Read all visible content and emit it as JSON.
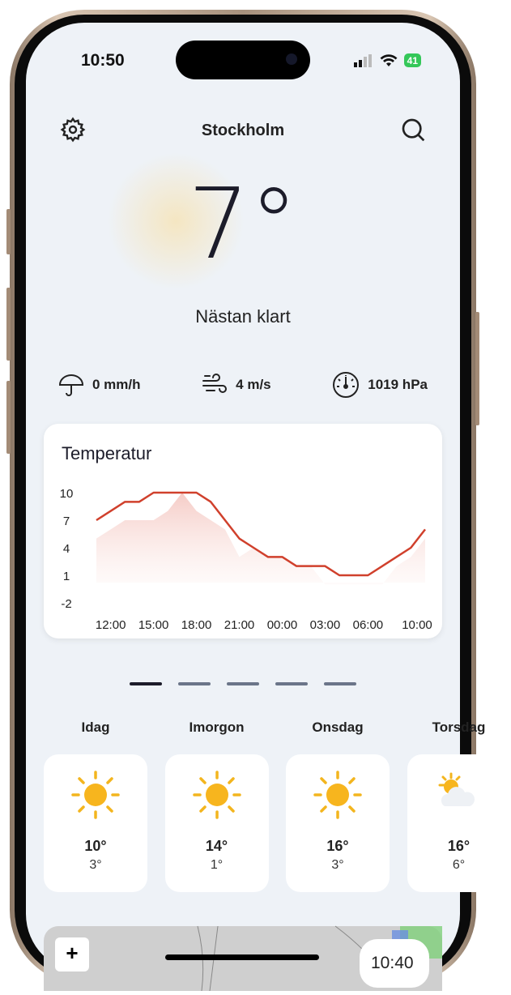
{
  "status_bar": {
    "time": "10:50",
    "battery": "41"
  },
  "header": {
    "title": "Stockholm",
    "settings_icon": "gear-icon",
    "search_icon": "search-icon"
  },
  "current": {
    "temperature": "7°",
    "condition": "Nästan klart"
  },
  "stats": [
    {
      "icon": "umbrella-icon",
      "value": "0 mm/h"
    },
    {
      "icon": "wind-icon",
      "value": "4 m/s"
    },
    {
      "icon": "gauge-icon",
      "value": "1019 hPa"
    }
  ],
  "chart_data": {
    "type": "line",
    "title": "Temperatur",
    "x": [
      "11:00",
      "12:00",
      "13:00",
      "14:00",
      "15:00",
      "16:00",
      "17:00",
      "18:00",
      "19:00",
      "20:00",
      "21:00",
      "22:00",
      "23:00",
      "00:00",
      "01:00",
      "02:00",
      "03:00",
      "04:00",
      "05:00",
      "06:00",
      "07:00",
      "08:00",
      "09:00",
      "10:00"
    ],
    "series": [
      {
        "values": [
          7,
          8,
          9,
          9,
          10,
          10,
          10,
          10,
          9,
          7,
          5,
          4,
          3,
          3,
          2,
          2,
          2,
          1,
          1,
          1,
          2,
          3,
          4,
          6
        ],
        "color": "#d0402c",
        "style": "line"
      },
      {
        "values": [
          5,
          6,
          7,
          7,
          7,
          8,
          10,
          8,
          7,
          6,
          3,
          4,
          3,
          3,
          2,
          2,
          0,
          0,
          0,
          0,
          0,
          2,
          3,
          5
        ],
        "color": "#f6d3cf",
        "style": "area"
      }
    ],
    "yticks": [
      "10",
      "7",
      "4",
      "1",
      "-2"
    ],
    "xticks": [
      "12:00",
      "15:00",
      "18:00",
      "21:00",
      "00:00",
      "03:00",
      "06:00",
      "10:00"
    ],
    "ylim": [
      -2,
      10
    ]
  },
  "pager": {
    "pages": 5,
    "active": 0
  },
  "days": [
    {
      "label": "Idag",
      "icon": "sun-icon",
      "high": "10°",
      "low": "3°"
    },
    {
      "label": "Imorgon",
      "icon": "sun-icon",
      "high": "14°",
      "low": "1°"
    },
    {
      "label": "Onsdag",
      "icon": "sun-icon",
      "high": "16°",
      "low": "3°"
    },
    {
      "label": "Torsdag",
      "icon": "partly-cloudy-icon",
      "high": "16°",
      "low": "6°"
    }
  ],
  "map": {
    "zoom_in": "+",
    "time": "10:40"
  }
}
